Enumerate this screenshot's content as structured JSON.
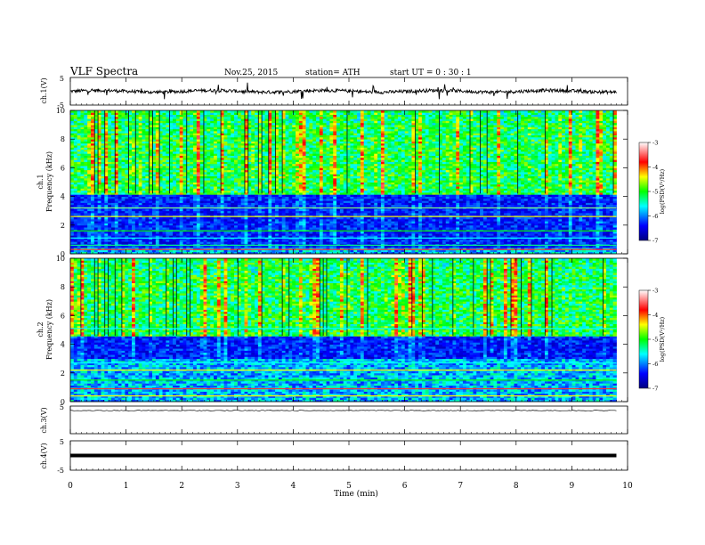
{
  "header": {
    "title": "VLF  Spectra",
    "date": "Nov.25, 2015",
    "station": "station= ATH",
    "start": "start  UT  =   0  : 30 : 1"
  },
  "chart_data": [
    {
      "type": "line",
      "ylabel": "ch.1(V)",
      "ylim": [
        -5,
        5
      ],
      "yticks": [
        "5",
        "-5"
      ],
      "baseline": 0,
      "description_of_series": "noisy trace near 0 V with sparse spikes"
    },
    {
      "type": "heatmap",
      "ylabel": "ch.1\nFrequency  (kHz)",
      "ylim": [
        0,
        10
      ],
      "yticks": [
        "0",
        "2",
        "4",
        "6",
        "8",
        "10"
      ],
      "colorbar": {
        "label": "log(PSD(V²/Hz)",
        "range": [
          -7,
          -3
        ],
        "ticks": [
          "-3",
          "-4",
          "-5",
          "-6",
          "-7"
        ]
      },
      "features": {
        "quiet_band_khz": [
          0.5,
          4.2
        ],
        "noisy_band_khz": [
          4.2,
          10
        ]
      }
    },
    {
      "type": "heatmap",
      "ylabel": "ch.2\nFrequency  (kHz)",
      "ylim": [
        0,
        10
      ],
      "yticks": [
        "0",
        "2",
        "4",
        "6",
        "8",
        "10"
      ],
      "colorbar": {
        "label": "log(PSD(V²/Hz)",
        "range": [
          -7,
          -3
        ],
        "ticks": [
          "-3",
          "-4",
          "-5",
          "-6",
          "-7"
        ]
      },
      "features": {
        "quiet_band_khz": [
          3,
          4.6
        ],
        "noisy_band_khz": [
          4.6,
          10
        ]
      }
    },
    {
      "type": "line",
      "ylabel": "ch.3(V)",
      "ylim": [
        -5,
        5
      ],
      "yticks": [
        "5"
      ],
      "baseline": 5
    },
    {
      "type": "line",
      "ylabel": "ch.4(V)",
      "ylim": [
        -5,
        5
      ],
      "yticks": [
        "5",
        "-5"
      ],
      "baseline": 0
    }
  ],
  "x_axis": {
    "label": "Time  (min)",
    "range": [
      0,
      10
    ],
    "ticks": [
      "0",
      "1",
      "2",
      "3",
      "4",
      "5",
      "6",
      "7",
      "8",
      "9",
      "10"
    ],
    "data_end": 9.8
  }
}
